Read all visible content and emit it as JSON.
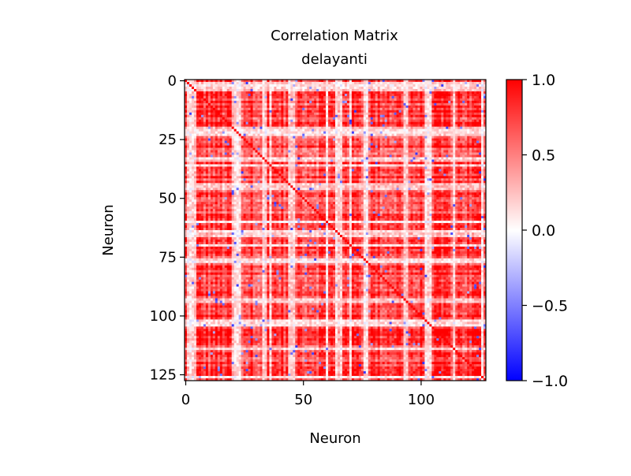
{
  "chart_data": {
    "type": "heatmap",
    "title": "Correlation Matrix",
    "subtitle": "delayanti",
    "xlabel": "Neuron",
    "ylabel": "Neuron",
    "n": 128,
    "xlim": [
      -0.5,
      127.5
    ],
    "ylim": [
      127.5,
      -0.5
    ],
    "x_ticks": [
      0,
      50,
      100
    ],
    "y_ticks": [
      0,
      25,
      50,
      75,
      100,
      125
    ],
    "colormap": "bwr",
    "clim": [
      -1.0,
      1.0
    ],
    "colorbar_ticks": [
      1.0,
      0.5,
      0.0,
      -0.5,
      -1.0
    ],
    "colorbar_tick_labels": [
      "1.0",
      "0.5",
      "0.0",
      "−0.5",
      "−1.0"
    ],
    "colors": {
      "low": "#0000ff",
      "mid": "#ffffff",
      "high": "#ff0000"
    },
    "diagonal_value": 1.0,
    "grid": false
  }
}
